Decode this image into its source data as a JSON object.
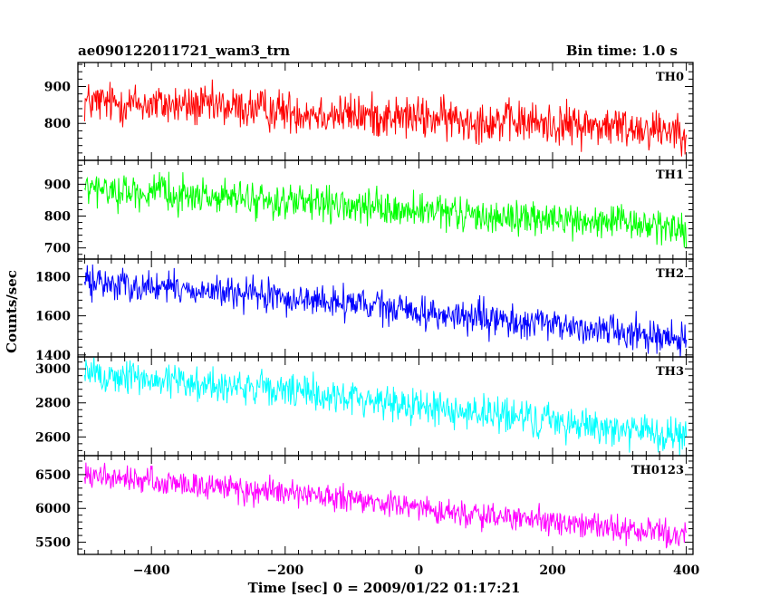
{
  "chart_data": {
    "type": "line",
    "title": "ae090122011721_wam3_trn",
    "subtitle": "Bin time: 1.0 s",
    "xlabel": "Time [sec] 0 = 2009/01/22 01:17:21",
    "ylabel": "Counts/sec",
    "xlim": [
      -510,
      410
    ],
    "x_ticks": [
      -400,
      -200,
      0,
      200,
      400
    ],
    "x_tick_labels": [
      "−400",
      "−200",
      "0",
      "200",
      "400"
    ],
    "bin_time_s": 1.0,
    "grid": false,
    "panels": [
      {
        "name": "TH0",
        "color": "#ff0000",
        "ylim": [
          700,
          965
        ],
        "y_ticks": [
          800,
          900
        ],
        "trend_x": [
          -500,
          -300,
          -100,
          100,
          300,
          400
        ],
        "trend_y": [
          858,
          845,
          823,
          807,
          790,
          784
        ],
        "noise_amplitude": 38
      },
      {
        "name": "TH1",
        "color": "#00ff00",
        "ylim": [
          665,
          975
        ],
        "y_ticks": [
          700,
          800,
          900
        ],
        "trend_x": [
          -500,
          -300,
          -100,
          100,
          300,
          400
        ],
        "trend_y": [
          885,
          860,
          827,
          800,
          777,
          762
        ],
        "noise_amplitude": 36
      },
      {
        "name": "TH2",
        "color": "#0000ff",
        "ylim": [
          1390,
          1890
        ],
        "y_ticks": [
          1400,
          1600,
          1800
        ],
        "trend_x": [
          -500,
          -300,
          -100,
          100,
          300,
          400
        ],
        "trend_y": [
          1775,
          1720,
          1660,
          1580,
          1525,
          1480
        ],
        "noise_amplitude": 55
      },
      {
        "name": "TH3",
        "color": "#00ffff",
        "ylim": [
          2490,
          3070
        ],
        "y_ticks": [
          2600,
          2800,
          3000
        ],
        "trend_x": [
          -500,
          -300,
          -100,
          100,
          300,
          400
        ],
        "trend_y": [
          2970,
          2905,
          2830,
          2735,
          2650,
          2590
        ],
        "noise_amplitude": 70
      },
      {
        "name": "TH0123",
        "color": "#ff00ff",
        "ylim": [
          5320,
          6780
        ],
        "y_ticks": [
          5500,
          6000,
          6500
        ],
        "trend_x": [
          -500,
          -300,
          -100,
          100,
          300,
          400
        ],
        "trend_y": [
          6480,
          6320,
          6120,
          5890,
          5700,
          5600
        ],
        "noise_amplitude": 130
      }
    ]
  }
}
